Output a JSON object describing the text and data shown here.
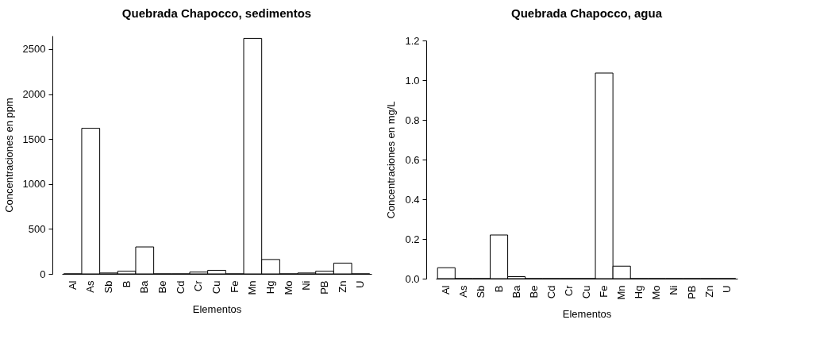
{
  "chart_data": [
    {
      "type": "bar",
      "title": "Quebrada Chapocco, sedimentos",
      "xlabel": "Elementos",
      "ylabel": "Concentraciones en ppm",
      "categories": [
        "Al",
        "As",
        "Sb",
        "B",
        "Ba",
        "Be",
        "Cd",
        "Cr",
        "Cu",
        "Fe",
        "Mn",
        "Hg",
        "Mo",
        "Ni",
        "PB",
        "Zn",
        "U"
      ],
      "values": [
        0,
        1620,
        10,
        30,
        300,
        0,
        0,
        20,
        40,
        0,
        2620,
        160,
        0,
        10,
        30,
        120,
        0
      ],
      "color": "#ffffff",
      "ylim": [
        0,
        2650
      ],
      "yticks": [
        0,
        500,
        1000,
        1500,
        2000,
        2500
      ],
      "grid": false
    },
    {
      "type": "bar",
      "title": "Quebrada Chapocco, agua",
      "xlabel": "Elementos",
      "ylabel": "Concentraciones en mg/L",
      "categories": [
        "Al",
        "As",
        "Sb",
        "B",
        "Ba",
        "Be",
        "Cd",
        "Cr",
        "Cu",
        "Fe",
        "Mn",
        "Hg",
        "Mo",
        "Ni",
        "PB",
        "Zn",
        "U"
      ],
      "values": [
        0.055,
        0,
        0,
        0.22,
        0.01,
        0,
        0,
        0,
        0,
        1.036,
        0.063,
        0,
        0,
        0,
        0,
        0,
        0
      ],
      "color": "#ffffff",
      "ylim": [
        0,
        1.2
      ],
      "yticks": [
        {
          "value": 0,
          "label": "0.0"
        },
        {
          "value": 0.2,
          "label": "0.2"
        },
        {
          "value": 0.4,
          "label": "0.4"
        },
        {
          "value": 0.6,
          "label": "0.6"
        },
        {
          "value": 0.8,
          "label": "0.8"
        },
        {
          "value": 1,
          "label": "1.0"
        },
        {
          "value": 1.2,
          "label": "1.2"
        }
      ],
      "grid": false
    }
  ]
}
